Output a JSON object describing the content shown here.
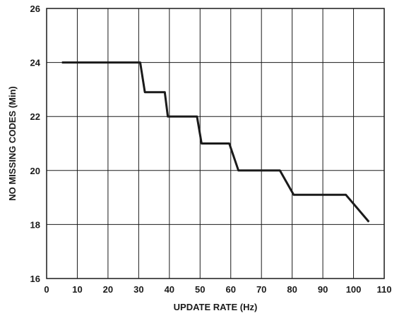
{
  "chart_data": {
    "type": "line",
    "title": "",
    "xlabel": "UPDATE RATE (Hz)",
    "ylabel": "NO MISSING CODES (Min)",
    "xlim": [
      0,
      110
    ],
    "ylim": [
      16,
      26
    ],
    "xticks": [
      0,
      10,
      20,
      30,
      40,
      50,
      60,
      70,
      80,
      90,
      100,
      110
    ],
    "yticks": [
      16,
      18,
      20,
      22,
      24,
      26
    ],
    "grid": true,
    "legend": "none",
    "line_color": "#1a1a1a",
    "series": [
      {
        "x": [
          5,
          30.5,
          32,
          38.5,
          39.5,
          49,
          50.5,
          59.5,
          62.5,
          76,
          80.5,
          97.5,
          105
        ],
        "y": [
          24,
          24,
          22.9,
          22.9,
          22,
          22,
          21,
          21,
          20,
          20,
          19.1,
          19.1,
          18.1
        ]
      }
    ]
  }
}
